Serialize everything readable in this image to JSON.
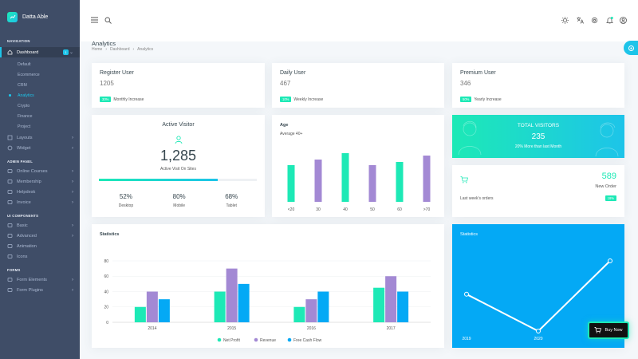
{
  "brand": {
    "name": "Datta Able"
  },
  "sidebar": {
    "caption_navigation": "NAVIGATION",
    "dashboard": {
      "label": "Dashboard",
      "badge": "1"
    },
    "dashboard_sub": [
      "Default",
      "Ecommerce",
      "CRM",
      "Analytics",
      "Crypto",
      "Finance",
      "Project"
    ],
    "active_sub": "Analytics",
    "layouts": "Layouts",
    "widget": "Widget",
    "caption_admin": "ADMIN PANEL",
    "admin_items": [
      "Online Courses",
      "Membership",
      "Helpdesk",
      "Invoice"
    ],
    "caption_ui": "UI COMPONENTS",
    "ui_items": [
      "Basic",
      "Advanced",
      "Animation",
      "Icons"
    ],
    "caption_forms": "FORMS",
    "form_items": [
      "Form Elements",
      "Form Plugins"
    ]
  },
  "page": {
    "title": "Analytics",
    "breadcrumb": [
      "Home",
      "Dashboard",
      "Analytics"
    ]
  },
  "stats": [
    {
      "title": "Register User",
      "value": "1205",
      "badge": "30%",
      "label": "Monthly Increase"
    },
    {
      "title": "Daily User",
      "value": "467",
      "badge": "10%",
      "label": "Weekly Increase"
    },
    {
      "title": "Premium User",
      "value": "346",
      "badge": "50%",
      "label": "Yearly Increase"
    }
  ],
  "active_visitor": {
    "title": "Active Visitor",
    "value": "1,285",
    "subtitle": "Active Visit On Sites",
    "progress": 0.75,
    "split": [
      {
        "value": "52%",
        "label": "Desktop"
      },
      {
        "value": "80%",
        "label": "Mobile"
      },
      {
        "value": "68%",
        "label": "Tablet"
      }
    ]
  },
  "age_chart": {
    "title": "Age",
    "subtitle": "Average 40+",
    "categories": [
      "<20",
      "30",
      "40",
      "50",
      "60",
      ">70"
    ],
    "values": [
      46,
      53,
      61,
      46,
      50,
      58
    ],
    "colors": [
      "#1de9b6",
      "#a389d4",
      "#1de9b6",
      "#a389d4",
      "#1de9b6",
      "#a389d4"
    ]
  },
  "total_visitors": {
    "title": "TOTAL VISITORS",
    "value": "235",
    "subtitle": "20% More than last Month"
  },
  "orders": {
    "value": "589",
    "label": "New Order",
    "footer": "Last week's orders",
    "badge": "18%"
  },
  "statistics": {
    "title": "Statistics",
    "legend": [
      "Net Profit",
      "Revenue",
      "Free Cash Flow"
    ]
  },
  "statistics_line": {
    "title": "Statistics",
    "x_labels": [
      "2019",
      "2020"
    ]
  },
  "buy_button": {
    "label": "Buy Now"
  },
  "colors": {
    "sidebar": "#3f4d67",
    "accent": "#1dc4e9",
    "green": "#1de9b6",
    "purple": "#a389d4",
    "blue": "#04a9f5"
  },
  "chart_data": [
    {
      "type": "bar",
      "categories": [
        "2014",
        "2015",
        "2016",
        "2017"
      ],
      "series": [
        {
          "name": "Net Profit",
          "values": [
            20,
            40,
            20,
            45
          ]
        },
        {
          "name": "Revenue",
          "values": [
            40,
            70,
            30,
            60
          ]
        },
        {
          "name": "Free Cash Flow",
          "values": [
            30,
            50,
            40,
            40
          ]
        }
      ],
      "title": "Statistics",
      "ylim": [
        0,
        80
      ],
      "yticks": [
        0,
        20,
        40,
        60,
        80
      ],
      "legend": "bottom"
    },
    {
      "type": "bar",
      "categories": [
        "<20",
        "30",
        "40",
        "50",
        "60",
        ">70"
      ],
      "values": [
        46,
        53,
        61,
        46,
        50,
        58
      ],
      "title": "Age"
    },
    {
      "type": "line",
      "x": [
        "",
        "2019",
        "2020",
        ""
      ],
      "values": [
        42,
        0,
        0,
        80
      ],
      "title": "Statistics"
    }
  ]
}
